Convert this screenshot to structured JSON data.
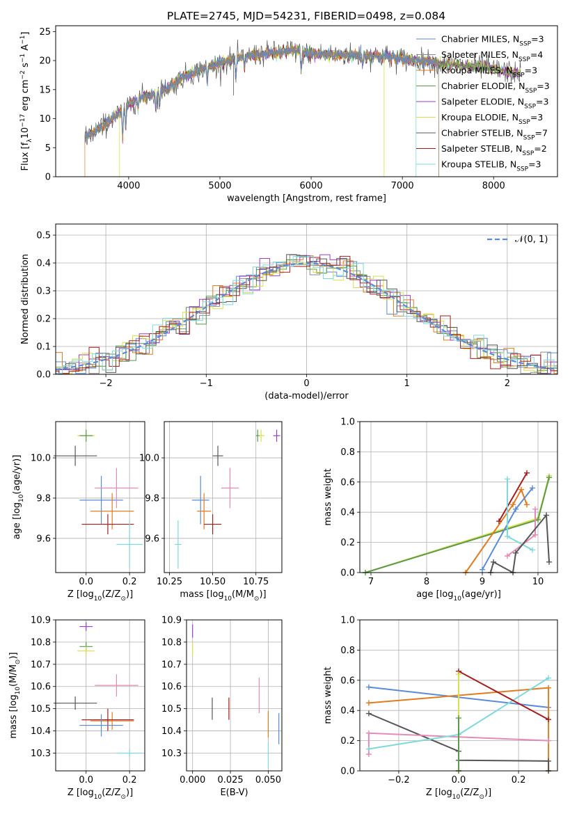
{
  "figure": {
    "title": "PLATE=2745, MJD=54231, FIBERID=0498, z=0.084"
  },
  "colors": {
    "Chabrier MILES": "#5b8ad6",
    "Salpeter MILES": "#8a8a8a",
    "Kroupa MILES": "#e07b1f",
    "Chabrier ELODIE": "#5a9a4a",
    "Salpeter ELODIE": "#9b3fc8",
    "Kroupa ELODIE": "#d9e04a",
    "Chabrier STELIB": "#555555",
    "Salpeter STELIB": "#a51c1c",
    "Kroupa STELIB": "#7fd9dc",
    "pink": "#e58ab6",
    "normal": "#5b8ad6"
  },
  "chart_data": [
    {
      "id": "spectrum",
      "type": "line",
      "title": "PLATE=2745, MJD=54231, FIBERID=0498, z=0.084",
      "xlabel": "wavelength [Angstrom, rest frame]",
      "ylabel": "Flux [f_λ 10^-17 erg cm^-2 s^-1 A^-1]",
      "xlim": [
        3200,
        8700
      ],
      "ylim": [
        0,
        26
      ],
      "xticks": [
        "4000",
        "5000",
        "6000",
        "7000",
        "8000"
      ],
      "yticks": [
        "0",
        "5",
        "10",
        "15",
        "20",
        "25"
      ],
      "grid": false,
      "legend_position": "right",
      "legend": [
        "Chabrier MILES, N_SSP=3",
        "Salpeter MILES, N_SSP=4",
        "Kroupa MILES, N_SSP=3",
        "Chabrier ELODIE, N_SSP=3",
        "Salpeter ELODIE, N_SSP=3",
        "Kroupa ELODIE, N_SSP=3",
        "Chabrier STELIB, N_SSP=7",
        "Salpeter STELIB, N_SSP=2",
        "Kroupa STELIB, N_SSP=3"
      ],
      "continuum_x": [
        3500,
        3600,
        3700,
        3800,
        3900,
        4000,
        4100,
        4200,
        4300,
        4400,
        4500,
        4600,
        4800,
        5000,
        5200,
        5400,
        5600,
        5800,
        6000,
        6200,
        6400,
        6600,
        6800,
        7000,
        7200,
        7400,
        7600,
        7800,
        8000,
        8200,
        8400
      ],
      "continuum_y": [
        6.5,
        7.5,
        8.5,
        9.8,
        11.0,
        12.5,
        13.5,
        14.0,
        14.3,
        15.2,
        16.0,
        17.2,
        18.5,
        19.5,
        20.5,
        21.0,
        21.3,
        21.8,
        21.2,
        21.0,
        21.0,
        20.8,
        20.8,
        20.3,
        20.0,
        19.5,
        19.2,
        19.0,
        18.5,
        18.0,
        17.5
      ]
    },
    {
      "id": "residuals",
      "type": "histogram",
      "xlabel": "(data-model)/error",
      "ylabel": "Normed distribution",
      "xlim": [
        -2.5,
        2.5
      ],
      "ylim": [
        0,
        0.54
      ],
      "xticks": [
        "−2",
        "−1",
        "0",
        "1",
        "2"
      ],
      "yticks": [
        "0.0",
        "0.1",
        "0.2",
        "0.3",
        "0.4",
        "0.5"
      ],
      "grid": true,
      "legend_position": "top-right",
      "legend": [
        "N(0,1)"
      ]
    },
    {
      "id": "age-vs-Z",
      "type": "scatter",
      "xlabel": "Z [log10(Z/Z⊙)]",
      "ylabel": "age [log10(age/yr)]",
      "xlim": [
        -0.14,
        0.27
      ],
      "ylim": [
        9.43,
        10.18
      ],
      "xticks": [
        "0.0",
        "0.2"
      ],
      "yticks": [
        "9.6",
        "9.8",
        "10.0"
      ],
      "grid": true,
      "points": [
        {
          "x": 0.0,
          "y": 10.11,
          "xerr": 0.04,
          "yerr": 0.03,
          "c": "Kroupa ELODIE"
        },
        {
          "x": 0.0,
          "y": 10.11,
          "xerr": 0.03,
          "yerr": 0.03,
          "c": "Chabrier ELODIE"
        },
        {
          "x": -0.05,
          "y": 10.01,
          "xerr": 0.1,
          "yerr": 0.05,
          "c": "Chabrier STELIB"
        },
        {
          "x": 0.07,
          "y": 9.79,
          "xerr": 0.1,
          "yerr": 0.12,
          "c": "Chabrier MILES"
        },
        {
          "x": 0.14,
          "y": 9.85,
          "xerr": 0.1,
          "yerr": 0.1,
          "c": "pink"
        },
        {
          "x": 0.12,
          "y": 9.735,
          "xerr": 0.1,
          "yerr": 0.09,
          "c": "Kroupa MILES"
        },
        {
          "x": 0.1,
          "y": 9.67,
          "xerr": 0.12,
          "yerr": 0.05,
          "c": "Salpeter STELIB"
        },
        {
          "x": 0.2,
          "y": 9.57,
          "xerr": 0.06,
          "yerr": 0.12,
          "c": "Kroupa STELIB"
        }
      ]
    },
    {
      "id": "age-vs-mass",
      "type": "scatter",
      "xlabel": "mass [log10(M/M⊙)]",
      "ylabel": "",
      "xlim": [
        10.22,
        10.9
      ],
      "ylim": [
        9.43,
        10.18
      ],
      "xticks": [
        "10.25",
        "10.50",
        "10.75"
      ],
      "yticks": [
        "9.6",
        "9.8",
        "10.0"
      ],
      "grid": true,
      "points": [
        {
          "x": 10.78,
          "y": 10.11,
          "xerr": 0.02,
          "yerr": 0.03,
          "c": "Kroupa ELODIE"
        },
        {
          "x": 10.76,
          "y": 10.11,
          "xerr": 0.01,
          "yerr": 0.03,
          "c": "Chabrier ELODIE"
        },
        {
          "x": 10.87,
          "y": 10.11,
          "xerr": 0.02,
          "yerr": 0.03,
          "c": "Salpeter ELODIE"
        },
        {
          "x": 10.53,
          "y": 10.01,
          "xerr": 0.03,
          "yerr": 0.05,
          "c": "Chabrier STELIB"
        },
        {
          "x": 10.43,
          "y": 9.79,
          "xerr": 0.05,
          "yerr": 0.12,
          "c": "Chabrier MILES"
        },
        {
          "x": 10.6,
          "y": 9.85,
          "xerr": 0.05,
          "yerr": 0.1,
          "c": "pink"
        },
        {
          "x": 10.45,
          "y": 9.735,
          "xerr": 0.04,
          "yerr": 0.09,
          "c": "Kroupa MILES"
        },
        {
          "x": 10.5,
          "y": 9.67,
          "xerr": 0.05,
          "yerr": 0.05,
          "c": "Salpeter STELIB"
        },
        {
          "x": 10.3,
          "y": 9.57,
          "xerr": 0.02,
          "yerr": 0.12,
          "c": "Kroupa STELIB"
        }
      ]
    },
    {
      "id": "weight-vs-age",
      "type": "line",
      "xlabel": "age [log10(age/yr)]",
      "ylabel": "mass weight",
      "xlim": [
        6.8,
        10.35
      ],
      "ylim": [
        0,
        1
      ],
      "xticks": [
        "7",
        "8",
        "9",
        "10"
      ],
      "yticks": [
        "0.0",
        "0.2",
        "0.4",
        "0.6",
        "0.8",
        "1.0"
      ],
      "grid": true,
      "series": [
        {
          "c": "Kroupa ELODIE",
          "x": [
            6.9,
            10.0,
            10.2
          ],
          "y": [
            0.0,
            0.36,
            0.64
          ]
        },
        {
          "c": "Chabrier ELODIE",
          "x": [
            6.9,
            10.0,
            10.2
          ],
          "y": [
            0.0,
            0.35,
            0.63
          ]
        },
        {
          "c": "Kroupa MILES",
          "x": [
            8.7,
            9.55,
            9.7,
            9.8
          ],
          "y": [
            0.0,
            0.45,
            0.55,
            0.45
          ]
        },
        {
          "c": "Salpeter STELIB",
          "x": [
            9.3,
            9.8
          ],
          "y": [
            0.34,
            0.66
          ]
        },
        {
          "c": "Chabrier MILES",
          "x": [
            9.0,
            9.6,
            9.9
          ],
          "y": [
            0.02,
            0.42,
            0.56
          ]
        },
        {
          "c": "Kroupa STELIB",
          "x": [
            9.45,
            9.45,
            9.9
          ],
          "y": [
            0.62,
            0.24,
            0.15
          ]
        },
        {
          "c": "pink",
          "x": [
            9.45,
            9.95,
            9.95
          ],
          "y": [
            0.11,
            0.25,
            0.42
          ]
        },
        {
          "c": "Chabrier STELIB",
          "x": [
            9.15,
            9.2,
            9.55,
            9.6,
            10.15,
            10.2
          ],
          "y": [
            0.0,
            0.07,
            0.0,
            0.13,
            0.38,
            0.07
          ]
        }
      ]
    },
    {
      "id": "mass-vs-Z",
      "type": "scatter",
      "xlabel": "Z [log10(Z/Z⊙)]",
      "ylabel": "mass [log10(M/M⊙)]",
      "xlim": [
        -0.14,
        0.27
      ],
      "ylim": [
        10.22,
        10.9
      ],
      "xticks": [
        "0.0",
        "0.2"
      ],
      "yticks": [
        "10.3",
        "10.4",
        "10.5",
        "10.6",
        "10.7",
        "10.8",
        "10.9"
      ],
      "grid": true,
      "points": [
        {
          "x": 0.0,
          "y": 10.87,
          "xerr": 0.03,
          "yerr": 0.02,
          "c": "Salpeter ELODIE"
        },
        {
          "x": 0.0,
          "y": 10.78,
          "xerr": 0.03,
          "yerr": 0.02,
          "c": "Chabrier ELODIE"
        },
        {
          "x": 0.0,
          "y": 10.76,
          "xerr": 0.04,
          "yerr": 0.02,
          "c": "Kroupa ELODIE"
        },
        {
          "x": 0.14,
          "y": 10.605,
          "xerr": 0.1,
          "yerr": 0.05,
          "c": "pink"
        },
        {
          "x": -0.05,
          "y": 10.525,
          "xerr": 0.1,
          "yerr": 0.03,
          "c": "Chabrier STELIB"
        },
        {
          "x": 0.12,
          "y": 10.445,
          "xerr": 0.1,
          "yerr": 0.04,
          "c": "Kroupa MILES"
        },
        {
          "x": 0.1,
          "y": 10.45,
          "xerr": 0.12,
          "yerr": 0.05,
          "c": "Salpeter STELIB"
        },
        {
          "x": 0.07,
          "y": 10.425,
          "xerr": 0.1,
          "yerr": 0.05,
          "c": "Chabrier MILES"
        },
        {
          "x": 0.2,
          "y": 10.3,
          "xerr": 0.06,
          "yerr": 0.02,
          "c": "Kroupa STELIB"
        }
      ]
    },
    {
      "id": "mass-vs-EBV",
      "type": "scatter",
      "xlabel": "E(B-V)",
      "ylabel": "",
      "xlim": [
        -0.004,
        0.059
      ],
      "ylim": [
        10.22,
        10.9
      ],
      "xticks": [
        "0.000",
        "0.025",
        "0.050"
      ],
      "yticks": [
        "10.3",
        "10.4",
        "10.5",
        "10.6",
        "10.7",
        "10.8",
        "10.9"
      ],
      "grid": true,
      "points": [
        {
          "x": 0.0,
          "y": 10.85,
          "xerr": 0.0,
          "yerr": 0.03,
          "c": "Salpeter ELODIE"
        },
        {
          "x": 0.0,
          "y": 10.77,
          "xerr": 0.0,
          "yerr": 0.03,
          "c": "Kroupa ELODIE"
        },
        {
          "x": 0.013,
          "y": 10.5,
          "xerr": 0.0,
          "yerr": 0.05,
          "c": "Chabrier STELIB"
        },
        {
          "x": 0.024,
          "y": 10.5,
          "xerr": 0.0,
          "yerr": 0.05,
          "c": "Salpeter STELIB"
        },
        {
          "x": 0.044,
          "y": 10.56,
          "xerr": 0.0,
          "yerr": 0.08,
          "c": "pink"
        },
        {
          "x": 0.05,
          "y": 10.43,
          "xerr": 0.0,
          "yerr": 0.06,
          "c": "Kroupa MILES"
        },
        {
          "x": 0.05,
          "y": 10.29,
          "xerr": 0.0,
          "yerr": 0.06,
          "c": "Kroupa STELIB"
        },
        {
          "x": 0.057,
          "y": 10.41,
          "xerr": 0.0,
          "yerr": 0.07,
          "c": "Chabrier MILES"
        }
      ]
    },
    {
      "id": "weight-vs-Z",
      "type": "line",
      "xlabel": "Z [log10(Z/Z⊙)]",
      "ylabel": "mass weight",
      "xlim": [
        -0.33,
        0.33
      ],
      "ylim": [
        0,
        1
      ],
      "xticks": [
        "−0.2",
        "0.0",
        "0.2"
      ],
      "yticks": [
        "0.0",
        "0.2",
        "0.4",
        "0.6",
        "0.8",
        "1.0"
      ],
      "grid": true,
      "series": [
        {
          "c": "Chabrier MILES",
          "x": [
            -0.3,
            0.3
          ],
          "y": [
            0.555,
            0.42
          ]
        },
        {
          "c": "Kroupa MILES",
          "x": [
            -0.3,
            0.3,
            0.3
          ],
          "y": [
            0.45,
            0.55,
            0.0
          ]
        },
        {
          "c": "Chabrier STELIB",
          "x": [
            -0.3,
            0.0,
            0.0,
            0.3,
            0.3
          ],
          "y": [
            0.38,
            0.13,
            0.07,
            0.065,
            0.0
          ]
        },
        {
          "c": "pink",
          "x": [
            -0.3,
            -0.3,
            0.3
          ],
          "y": [
            0.11,
            0.25,
            0.2
          ]
        },
        {
          "c": "Kroupa STELIB",
          "x": [
            -0.3,
            0.0,
            0.3
          ],
          "y": [
            0.145,
            0.24,
            0.615
          ]
        },
        {
          "c": "Salpeter STELIB",
          "x": [
            0.0,
            0.0,
            0.3
          ],
          "y": [
            0.0,
            0.66,
            0.34
          ]
        },
        {
          "c": "Kroupa ELODIE",
          "x": [
            0.0,
            0.0
          ],
          "y": [
            0.0,
            0.64
          ]
        },
        {
          "c": "Chabrier ELODIE",
          "x": [
            0.0,
            0.0
          ],
          "y": [
            0.0,
            0.35
          ]
        }
      ]
    }
  ]
}
